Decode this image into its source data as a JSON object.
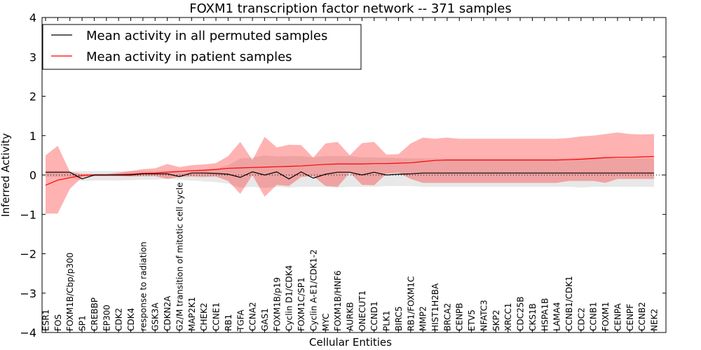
{
  "chart_data": {
    "type": "line",
    "title": "FOXM1 transcription factor network -- 371 samples",
    "xlabel": "Cellular Entities",
    "ylabel": "Inferred Activity",
    "ylim": [
      -4,
      4
    ],
    "yticks": [
      -4,
      -3,
      -2,
      -1,
      0,
      1,
      2,
      3,
      4
    ],
    "ytick_labels": [
      "−4",
      "−3",
      "−2",
      "−1",
      "0",
      "1",
      "2",
      "3",
      "4"
    ],
    "legend_position": "top-left",
    "categories": [
      "ESR1",
      "FOS",
      "FOXM1B/Cbp/p300",
      "SP1",
      "CREBBP",
      "EP300",
      "CDK2",
      "CDK4",
      "response to radiation",
      "GSK3A",
      "CDKN2A",
      "G2/M transition of mitotic cell cycle",
      "MAP2K1",
      "CHEK2",
      "CCNE1",
      "RB1",
      "TGFA",
      "CCNA2",
      "GAS1",
      "FOXM1B/p19",
      "Cyclin D1/CDK4",
      "FOXM1C/SP1",
      "Cyclin A-E1/CDK1-2",
      "MYC",
      "FOXM1B/HNF6",
      "AURKB",
      "ONECUT1",
      "CCND1",
      "PLK1",
      "BIRC5",
      "RB1/FOXM1C",
      "MMP2",
      "HIST1H2BA",
      "BRCA2",
      "CENPB",
      "ETV5",
      "NFATC3",
      "SKP2",
      "XRCC1",
      "CDC25B",
      "CKS1B",
      "HSPA1B",
      "LAMA4",
      "CCNB1/CDK1",
      "CDC2",
      "CCNB1",
      "FOXM1",
      "CENPA",
      "CENPF",
      "CCNB2",
      "NEK2"
    ],
    "series": [
      {
        "name": "Mean activity in all permuted samples",
        "color": "#000000",
        "values": [
          0.07,
          0.07,
          0.07,
          -0.1,
          0.0,
          0.0,
          0.0,
          0.0,
          0.03,
          0.03,
          0.03,
          -0.04,
          0.05,
          0.05,
          0.04,
          0.02,
          -0.06,
          0.08,
          0.0,
          0.08,
          -0.1,
          0.08,
          -0.08,
          0.02,
          0.07,
          0.07,
          0.0,
          0.07,
          0.0,
          0.02,
          0.03,
          0.05,
          0.05,
          0.05,
          0.05,
          0.05,
          0.05,
          0.05,
          0.05,
          0.05,
          0.05,
          0.05,
          0.05,
          0.05,
          0.05,
          0.05,
          0.05,
          0.05,
          0.05,
          0.05,
          0.05
        ],
        "upper": [
          0.1,
          0.1,
          0.1,
          0.1,
          0.1,
          0.1,
          0.1,
          0.1,
          0.1,
          0.1,
          0.1,
          0.1,
          0.12,
          0.14,
          0.16,
          0.25,
          0.42,
          0.44,
          0.5,
          0.47,
          0.48,
          0.48,
          0.45,
          0.48,
          0.48,
          0.48,
          0.45,
          0.45,
          0.44,
          0.43,
          0.42,
          0.42,
          0.42,
          0.42,
          0.42,
          0.42,
          0.42,
          0.42,
          0.42,
          0.42,
          0.42,
          0.42,
          0.42,
          0.42,
          0.45,
          0.45,
          0.45,
          0.42,
          0.42,
          0.42,
          0.42
        ],
        "lower": [
          -0.05,
          -0.05,
          -0.06,
          -0.15,
          -0.14,
          -0.14,
          -0.14,
          -0.13,
          -0.12,
          -0.12,
          -0.1,
          -0.12,
          -0.14,
          -0.16,
          -0.18,
          -0.22,
          -0.32,
          -0.3,
          -0.33,
          -0.3,
          -0.32,
          -0.3,
          -0.3,
          -0.3,
          -0.32,
          -0.3,
          -0.3,
          -0.3,
          -0.28,
          -0.28,
          -0.28,
          -0.3,
          -0.3,
          -0.3,
          -0.3,
          -0.3,
          -0.3,
          -0.3,
          -0.3,
          -0.3,
          -0.3,
          -0.3,
          -0.3,
          -0.3,
          -0.32,
          -0.3,
          -0.3,
          -0.3,
          -0.3,
          -0.3,
          -0.3
        ]
      },
      {
        "name": "Mean activity in patient samples",
        "color": "#ff0000",
        "values": [
          -0.26,
          -0.13,
          -0.07,
          -0.01,
          0.0,
          0.0,
          0.01,
          0.02,
          0.04,
          0.05,
          0.07,
          0.09,
          0.11,
          0.12,
          0.14,
          0.17,
          0.18,
          0.19,
          0.2,
          0.21,
          0.22,
          0.23,
          0.25,
          0.27,
          0.28,
          0.28,
          0.28,
          0.29,
          0.29,
          0.3,
          0.31,
          0.34,
          0.37,
          0.38,
          0.38,
          0.38,
          0.38,
          0.38,
          0.38,
          0.38,
          0.38,
          0.38,
          0.38,
          0.39,
          0.4,
          0.42,
          0.44,
          0.45,
          0.45,
          0.46,
          0.47
        ],
        "upper": [
          0.5,
          0.74,
          0.08,
          0.03,
          0.03,
          0.03,
          0.06,
          0.1,
          0.15,
          0.17,
          0.28,
          0.2,
          0.25,
          0.27,
          0.3,
          0.48,
          0.84,
          0.38,
          0.97,
          0.7,
          0.77,
          0.76,
          0.44,
          0.8,
          0.84,
          0.5,
          0.81,
          0.84,
          0.52,
          0.53,
          0.8,
          0.95,
          0.92,
          0.95,
          0.92,
          0.92,
          0.92,
          0.92,
          0.92,
          0.92,
          0.92,
          0.92,
          0.92,
          0.94,
          0.98,
          1.0,
          1.04,
          1.08,
          1.04,
          1.03,
          1.04
        ],
        "lower": [
          -0.98,
          -0.98,
          -0.35,
          -0.06,
          -0.03,
          -0.03,
          -0.03,
          -0.04,
          -0.03,
          -0.03,
          -0.1,
          -0.05,
          -0.04,
          -0.05,
          -0.04,
          -0.15,
          -0.48,
          0.0,
          -0.55,
          -0.25,
          -0.28,
          -0.05,
          -0.03,
          -0.28,
          -0.3,
          0.06,
          -0.25,
          -0.26,
          0.03,
          0.06,
          -0.1,
          -0.2,
          -0.2,
          -0.2,
          -0.2,
          -0.2,
          -0.2,
          -0.2,
          -0.2,
          -0.2,
          -0.2,
          -0.2,
          -0.2,
          -0.15,
          -0.15,
          -0.15,
          -0.2,
          -0.1,
          -0.1,
          -0.1,
          -0.1
        ]
      }
    ],
    "reference_line": 0
  }
}
